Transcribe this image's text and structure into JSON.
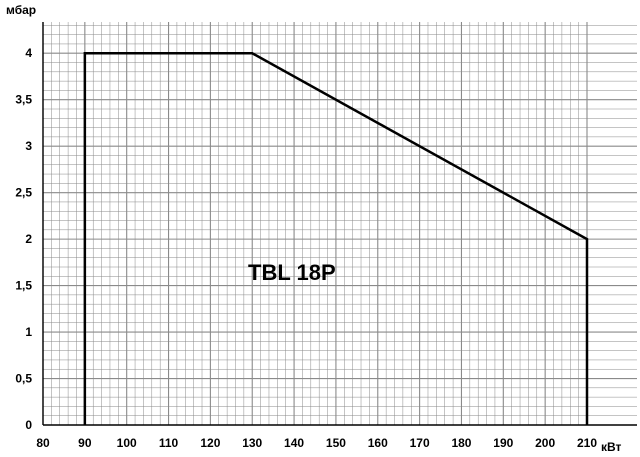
{
  "chart_data": {
    "type": "line",
    "title": "TBL 18P",
    "xlabel": "кВт",
    "ylabel": "мбар",
    "xlim": [
      80,
      210
    ],
    "ylim": [
      0,
      4.25
    ],
    "x_ticks": [
      80,
      90,
      100,
      110,
      120,
      130,
      140,
      150,
      160,
      170,
      180,
      190,
      200,
      210
    ],
    "x_tick_labels": [
      "80",
      "90",
      "100",
      "110",
      "120",
      "130",
      "140",
      "150",
      "160",
      "170",
      "180",
      "190",
      "200",
      "210"
    ],
    "y_ticks": [
      0,
      0.5,
      1,
      1.5,
      2,
      2.5,
      3,
      3.5,
      4
    ],
    "y_tick_labels": [
      "0",
      "0,5",
      "1",
      "1,5",
      "2",
      "2,5",
      "3",
      "3,5",
      "4"
    ],
    "grid": true,
    "series": [
      {
        "x": [
          90,
          90,
          130,
          210,
          210
        ],
        "y": [
          0,
          4,
          4,
          2,
          0
        ]
      }
    ],
    "colors": {
      "line": "#000000",
      "grid": "#8a8a8a",
      "axis": "#000000"
    }
  }
}
